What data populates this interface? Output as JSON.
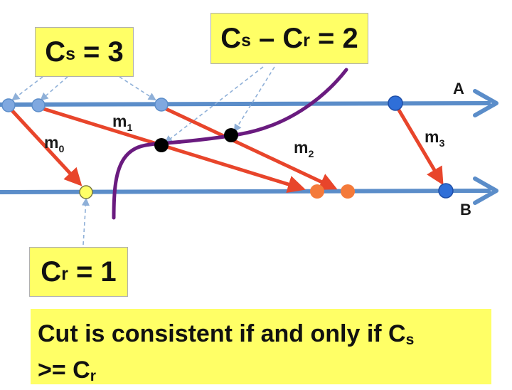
{
  "colors": {
    "timeline": "#5b8dc9",
    "message": "#e8452b",
    "cut": "#6a1b7f",
    "label_box": "#ffff66",
    "send_event": "#7fa8e0",
    "receive_event": "#f47a3a",
    "cut_event": "#000000"
  },
  "processes": [
    {
      "name": "A"
    },
    {
      "name": "B"
    }
  ],
  "messages": [
    {
      "name": "m",
      "index": "0"
    },
    {
      "name": "m",
      "index": "1"
    },
    {
      "name": "m",
      "index": "2"
    },
    {
      "name": "m",
      "index": "3"
    }
  ],
  "boxes": {
    "sent": {
      "prefix": "C",
      "sub": "s",
      "suffix": " = 3"
    },
    "diff": {
      "prefix": "C",
      "sub1": "s",
      "middle": " – C",
      "sub2": "r",
      "suffix": " = 2"
    },
    "received": {
      "prefix": "C",
      "sub": "r",
      "suffix": " = 1"
    }
  },
  "caption": {
    "line1": "Cut is consistent if and only if C",
    "line1_sub": "s",
    "line2": ">= C",
    "line2_sub": "r"
  }
}
